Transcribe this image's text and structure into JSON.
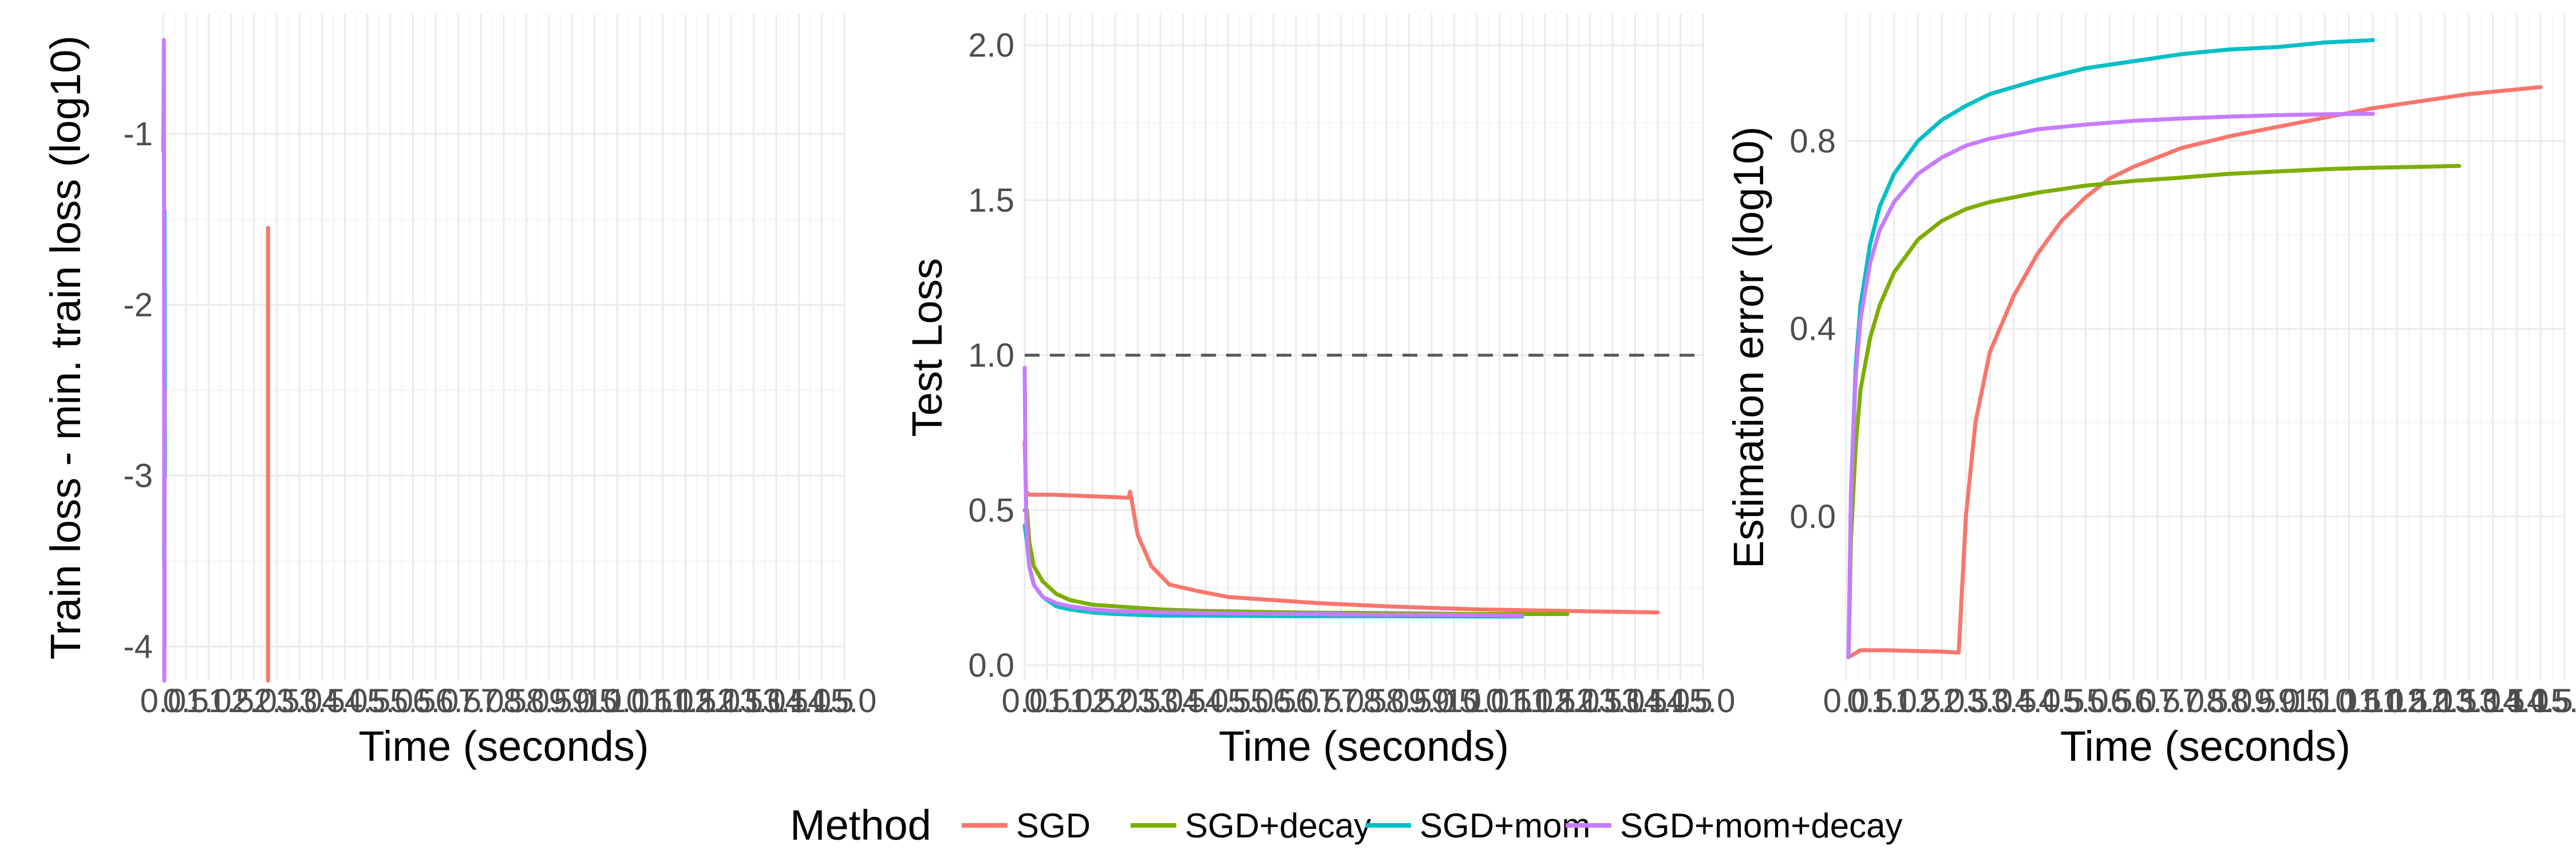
{
  "chart_data": [
    {
      "type": "line",
      "xlabel": "Time (seconds)",
      "ylabel": "Train loss - min. train loss (log10)",
      "xlim": [
        0,
        150
      ],
      "ylim": [
        -4.2,
        -0.3
      ],
      "xticks": [
        0,
        5,
        10,
        15,
        20,
        25,
        30,
        35,
        40,
        45,
        50,
        55,
        60,
        65,
        70,
        75,
        80,
        85,
        90,
        95,
        100,
        105,
        110,
        115,
        120,
        125,
        130,
        135,
        140,
        145,
        150
      ],
      "xtick_labels": [
        "0.0",
        "0.5",
        "1.0",
        "1.5",
        "2.0",
        "2.5",
        "3.0",
        "3.5",
        "4.0",
        "4.5",
        "5.0",
        "5.5",
        "6.0",
        "6.5",
        "7.0",
        "7.5",
        "8.0",
        "8.5",
        "9.0",
        "9.5",
        "10.0",
        "10.5",
        "11.0",
        "11.5",
        "12.0",
        "12.5",
        "13.0",
        "13.5",
        "14.0",
        "14.5",
        "15.0"
      ],
      "yticks": [
        -4,
        -3,
        -2,
        -1
      ],
      "ytick_labels": [
        "-4",
        "-3",
        "-2",
        "-1"
      ],
      "series": [
        {
          "name": "SGD",
          "color": "#F8766D",
          "x": [
            23.1,
            23.1,
            23.1,
            23.1
          ],
          "y": [
            -4.2,
            -2.8,
            -1.55,
            -4.2
          ]
        },
        {
          "name": "SGD+decay",
          "color": "#7CAE00",
          "x": [
            0.3,
            0.3,
            0.3,
            0.4
          ],
          "y": [
            -4.0,
            -2.9,
            -2.2,
            -2.9
          ]
        },
        {
          "name": "SGD+mom",
          "color": "#00BFC4",
          "x": [
            0.2,
            0.3,
            0.3,
            0.4
          ],
          "y": [
            -3.5,
            -2.0,
            -1.45,
            -3.0
          ]
        },
        {
          "name": "SGD+mom+decay",
          "color": "#C77CFF",
          "x": [
            0.0,
            0.1,
            0.15,
            0.2,
            0.25,
            0.3
          ],
          "y": [
            -1.1,
            -0.85,
            -0.45,
            -1.5,
            -4.2,
            -2.5
          ]
        }
      ],
      "grid": true
    },
    {
      "type": "line",
      "xlabel": "Time (seconds)",
      "ylabel": "Test Loss",
      "xlim": [
        0,
        150
      ],
      "ylim": [
        -0.05,
        2.1
      ],
      "xticks": [
        0,
        5,
        10,
        15,
        20,
        25,
        30,
        35,
        40,
        45,
        50,
        55,
        60,
        65,
        70,
        75,
        80,
        85,
        90,
        95,
        100,
        105,
        110,
        115,
        120,
        125,
        130,
        135,
        140,
        145,
        150
      ],
      "xtick_labels": [
        "0.0",
        "0.5",
        "1.0",
        "1.5",
        "2.0",
        "2.5",
        "3.0",
        "3.5",
        "4.0",
        "4.5",
        "5.0",
        "5.5",
        "6.0",
        "6.5",
        "7.0",
        "7.5",
        "8.0",
        "8.5",
        "9.0",
        "9.5",
        "10.0",
        "10.5",
        "11.0",
        "11.5",
        "12.0",
        "12.5",
        "13.0",
        "13.5",
        "14.0",
        "14.5",
        "15.0"
      ],
      "yticks": [
        0.0,
        0.5,
        1.0,
        1.5,
        2.0
      ],
      "ytick_labels": [
        "0.0",
        "0.5",
        "1.0",
        "1.5",
        "2.0"
      ],
      "reference_line": {
        "y": 1.0,
        "style": "dashed"
      },
      "series": [
        {
          "name": "SGD",
          "color": "#F8766D",
          "x": [
            0,
            0.3,
            1,
            3,
            6,
            10,
            15,
            20,
            23,
            23.3,
            25,
            28,
            32,
            38,
            45,
            55,
            65,
            80,
            100,
            120,
            140
          ],
          "y": [
            0.72,
            0.56,
            0.55,
            0.55,
            0.55,
            0.548,
            0.545,
            0.542,
            0.54,
            0.56,
            0.42,
            0.32,
            0.26,
            0.24,
            0.22,
            0.21,
            0.2,
            0.19,
            0.18,
            0.175,
            0.17
          ]
        },
        {
          "name": "SGD+decay",
          "color": "#7CAE00",
          "x": [
            0,
            0.5,
            1,
            2,
            4,
            7,
            10,
            15,
            20,
            30,
            40,
            60,
            80,
            100,
            120
          ],
          "y": [
            0.5,
            0.5,
            0.4,
            0.32,
            0.27,
            0.23,
            0.21,
            0.195,
            0.19,
            0.18,
            0.175,
            0.17,
            0.168,
            0.165,
            0.165
          ]
        },
        {
          "name": "SGD+mom",
          "color": "#00BFC4",
          "x": [
            0,
            0.5,
            1,
            2,
            4,
            7,
            10,
            15,
            20,
            30,
            40,
            60,
            80,
            100,
            110
          ],
          "y": [
            0.45,
            0.4,
            0.32,
            0.26,
            0.22,
            0.19,
            0.18,
            0.17,
            0.165,
            0.16,
            0.16,
            0.158,
            0.158,
            0.157,
            0.157
          ]
        },
        {
          "name": "SGD+mom+decay",
          "color": "#C77CFF",
          "x": [
            0,
            0.2,
            0.4,
            1,
            2,
            4,
            7,
            10,
            15,
            20,
            30,
            40,
            60,
            80,
            100,
            110
          ],
          "y": [
            0.96,
            0.6,
            0.45,
            0.32,
            0.26,
            0.22,
            0.2,
            0.19,
            0.18,
            0.175,
            0.17,
            0.168,
            0.165,
            0.163,
            0.162,
            0.16
          ]
        }
      ],
      "grid": true
    },
    {
      "type": "line",
      "xlabel": "Time (seconds)",
      "ylabel": "Estimation error (log10)",
      "xlim": [
        0,
        150
      ],
      "ylim": [
        -0.35,
        1.07
      ],
      "xticks": [
        0,
        5,
        10,
        15,
        20,
        25,
        30,
        35,
        40,
        45,
        50,
        55,
        60,
        65,
        70,
        75,
        80,
        85,
        90,
        95,
        100,
        105,
        110,
        115,
        120,
        125,
        130,
        135,
        140,
        145,
        150
      ],
      "xtick_labels": [
        "0.0",
        "0.5",
        "1.0",
        "1.5",
        "2.0",
        "2.5",
        "3.0",
        "3.5",
        "4.0",
        "4.5",
        "5.0",
        "5.5",
        "6.0",
        "6.5",
        "7.0",
        "7.5",
        "8.0",
        "8.5",
        "9.0",
        "9.5",
        "10.0",
        "10.5",
        "11.0",
        "11.5",
        "12.0",
        "12.5",
        "13.0",
        "13.5",
        "14.0",
        "14.5",
        "15.0"
      ],
      "yticks": [
        0.0,
        0.4,
        0.8
      ],
      "ytick_labels": [
        "0.0",
        "0.4",
        "0.8"
      ],
      "series": [
        {
          "name": "SGD",
          "color": "#F8766D",
          "x": [
            0.5,
            3,
            8,
            15,
            20,
            23,
            23.5,
            25,
            27,
            30,
            35,
            40,
            45,
            50,
            55,
            60,
            70,
            80,
            90,
            100,
            110,
            120,
            130,
            140,
            145
          ],
          "y": [
            -0.3,
            -0.285,
            -0.285,
            -0.287,
            -0.288,
            -0.29,
            -0.29,
            0.0,
            0.2,
            0.35,
            0.47,
            0.56,
            0.63,
            0.68,
            0.72,
            0.745,
            0.785,
            0.81,
            0.83,
            0.85,
            0.87,
            0.885,
            0.9,
            0.91,
            0.915
          ]
        },
        {
          "name": "SGD+decay",
          "color": "#7CAE00",
          "x": [
            0.5,
            1,
            2,
            3,
            5,
            7,
            10,
            15,
            20,
            25,
            30,
            40,
            50,
            60,
            70,
            80,
            90,
            100,
            110,
            120,
            128
          ],
          "y": [
            -0.3,
            -0.05,
            0.15,
            0.27,
            0.38,
            0.45,
            0.52,
            0.59,
            0.63,
            0.655,
            0.67,
            0.69,
            0.705,
            0.715,
            0.722,
            0.73,
            0.735,
            0.74,
            0.743,
            0.745,
            0.747
          ]
        },
        {
          "name": "SGD+mom",
          "color": "#00BFC4",
          "x": [
            0.5,
            1,
            2,
            3,
            5,
            7,
            10,
            15,
            20,
            25,
            30,
            40,
            50,
            60,
            70,
            80,
            90,
            100,
            110
          ],
          "y": [
            -0.3,
            0.05,
            0.32,
            0.45,
            0.58,
            0.66,
            0.73,
            0.8,
            0.845,
            0.875,
            0.9,
            0.93,
            0.955,
            0.97,
            0.985,
            0.995,
            1.0,
            1.01,
            1.015
          ]
        },
        {
          "name": "SGD+mom+decay",
          "color": "#C77CFF",
          "x": [
            0.5,
            1,
            2,
            3,
            5,
            7,
            10,
            15,
            20,
            25,
            30,
            40,
            50,
            60,
            70,
            80,
            90,
            100,
            110
          ],
          "y": [
            -0.3,
            0.05,
            0.3,
            0.42,
            0.54,
            0.61,
            0.67,
            0.73,
            0.765,
            0.79,
            0.805,
            0.825,
            0.835,
            0.843,
            0.848,
            0.852,
            0.855,
            0.857,
            0.858
          ]
        }
      ],
      "grid": true
    }
  ],
  "legend": {
    "title": "Method",
    "position": "bottom",
    "items": [
      {
        "label": "SGD",
        "color": "#F8766D"
      },
      {
        "label": "SGD+decay",
        "color": "#7CAE00"
      },
      {
        "label": "SGD+mom",
        "color": "#00BFC4"
      },
      {
        "label": "SGD+mom+decay",
        "color": "#C77CFF"
      }
    ]
  },
  "colors": {
    "grid_major": "#EBEBEB",
    "grid_minor": "#F5F5F5",
    "ref_line": "#555555"
  }
}
